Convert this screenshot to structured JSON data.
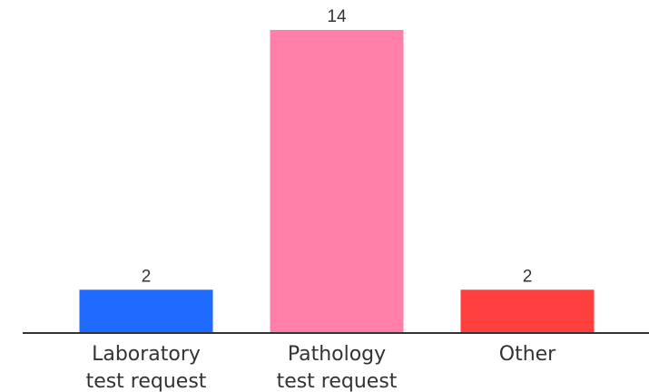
{
  "chart_data": {
    "type": "bar",
    "categories": [
      [
        "Laboratory",
        "test request"
      ],
      [
        "Pathology",
        "test request"
      ],
      [
        "Other"
      ]
    ],
    "values": [
      2,
      14,
      2
    ],
    "ylim": [
      0,
      14
    ],
    "grid": false,
    "legend": "none",
    "colors": [
      "#1f6bff",
      "#ff7fa8",
      "#ff3e3e"
    ],
    "axis_color": "#333333"
  }
}
